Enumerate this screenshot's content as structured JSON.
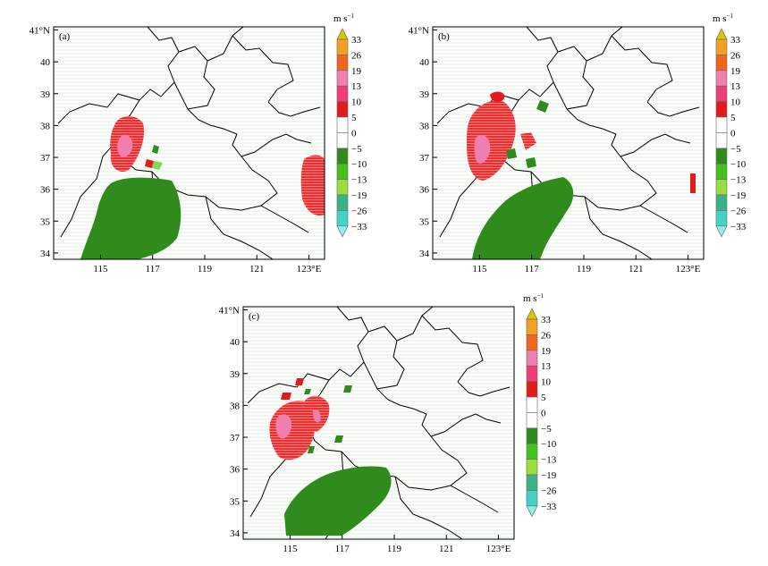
{
  "figure": {
    "panels": [
      {
        "id": "a",
        "label": "(a)"
      },
      {
        "id": "b",
        "label": "(b)"
      },
      {
        "id": "c",
        "label": "(c)"
      }
    ],
    "x_ticks": [
      "115",
      "117",
      "119",
      "121",
      "123°E"
    ],
    "x_tick_values": [
      115,
      117,
      119,
      121,
      123
    ],
    "y_ticks": [
      "41°N",
      "40",
      "39",
      "38",
      "37",
      "36",
      "35",
      "34"
    ],
    "y_tick_values": [
      41,
      40,
      39,
      38,
      37,
      36,
      35,
      34
    ],
    "lon_range": [
      113.2,
      123.6
    ],
    "lat_range": [
      33.8,
      41.1
    ],
    "colorbar": {
      "unit_main": "m s",
      "unit_exp": "−1",
      "levels": [
        "33",
        "26",
        "19",
        "13",
        "10",
        "5",
        "0",
        "−5",
        "−10",
        "−13",
        "−19",
        "−26",
        "−33"
      ],
      "colors": [
        "#d8c400",
        "#f2a023",
        "#f0661d",
        "#ef7fb0",
        "#ef3d78",
        "#e31b1b",
        "#ffffff",
        "#ffffff",
        "#2e8b1c",
        "#44c21c",
        "#9cdc3c",
        "#39b386",
        "#43d2c3",
        "#8ef0ee"
      ]
    },
    "colors": {
      "positive": "#ef2f2f",
      "strong_positive": "#ef7fb0",
      "negative": "#2e8b1c",
      "light_negative": "#7ed957",
      "hatch": "#cfe9cf"
    }
  }
}
